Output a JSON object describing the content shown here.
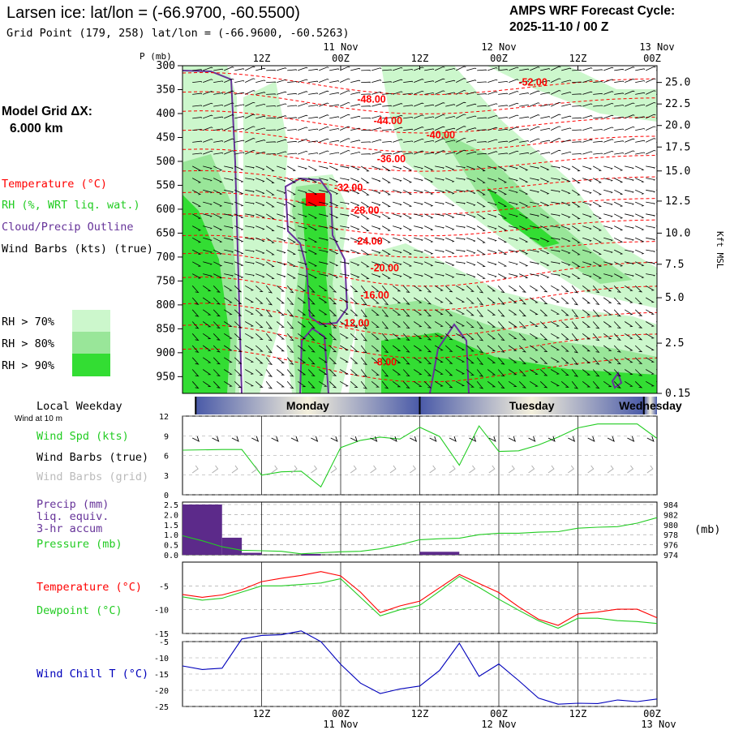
{
  "header": {
    "title": "Larsen ice:  lat/lon = (-66.9700, -60.5500)",
    "subtitle": "Grid Point (179, 258) lat/lon = (-66.9600, -60.5263)",
    "cycle_title": "AMPS WRF Forecast Cycle:",
    "cycle_value": "2025-11-10 / 00  Z"
  },
  "sidebar": {
    "grid_label": "Model Grid ΔX:",
    "grid_value": "6.000 km",
    "legend_temperature": "Temperature (°C)",
    "legend_rh": "RH (%, WRT liq. wat.)",
    "legend_cloud": "Cloud/Precip Outline",
    "legend_wind": "Wind Barbs (kts) (true)",
    "rh70": "RH > 70%",
    "rh80": "RH > 80%",
    "rh90": "RH > 90%",
    "local_weekday": "Local Weekday",
    "wind_at": "Wind at 10 m",
    "wind_spd": "Wind Spd (kts)",
    "wind_barbs_true": "Wind Barbs (true)",
    "wind_barbs_grid": "Wind Barbs (grid)",
    "precip1": "Precip (mm)",
    "precip2": "liq. equiv.",
    "precip3": "3-hr accum",
    "pressure": "Pressure (mb)",
    "pressure_unit": "(mb)",
    "temperature": "Temperature (°C)",
    "dewpoint": "Dewpoint (°C)",
    "windchill": "Wind Chill T (°C)"
  },
  "colors": {
    "rh70": "#ccf7cc",
    "rh80": "#99e699",
    "rh90": "#33dd33",
    "temperature": "#ff0000",
    "dewpoint": "#22cc22",
    "cloud": "#663399",
    "windchill": "#0000bb",
    "precip": "#5c2a8a",
    "pressure": "#22cc22"
  },
  "chart_data": [
    {
      "type": "heatmap",
      "name": "cross-section",
      "top_axis_labels": [
        {
          "x_hour": 12,
          "line1": "",
          "line2": "12Z"
        },
        {
          "x_hour": 24,
          "line1": "11 Nov",
          "line2": "00Z"
        },
        {
          "x_hour": 36,
          "line1": "",
          "line2": "12Z"
        },
        {
          "x_hour": 48,
          "line1": "12 Nov",
          "line2": "00Z"
        },
        {
          "x_hour": 60,
          "line1": "",
          "line2": "12Z"
        },
        {
          "x_hour": 72,
          "line1": "13 Nov",
          "line2": "00Z"
        }
      ],
      "xlim_hours": [
        0,
        72
      ],
      "ylabel": "P (mb)",
      "pressure_ticks": [
        300,
        350,
        400,
        450,
        500,
        550,
        600,
        650,
        700,
        750,
        800,
        850,
        900,
        950
      ],
      "kft_label": "Kft MSL",
      "kft_ticks": [
        {
          "label": "25.0",
          "p": 335
        },
        {
          "label": "22.5",
          "p": 380
        },
        {
          "label": "20.0",
          "p": 425
        },
        {
          "label": "17.5",
          "p": 470
        },
        {
          "label": "15.0",
          "p": 520
        },
        {
          "label": "12.5",
          "p": 583
        },
        {
          "label": "10.0",
          "p": 650
        },
        {
          "label": "7.5",
          "p": 715
        },
        {
          "label": "5.0",
          "p": 785
        },
        {
          "label": "2.5",
          "p": 880
        },
        {
          "label": "0.15",
          "p": 985
        }
      ],
      "temperature_labels": [
        {
          "label": "-48.00",
          "x_hour": 26.5,
          "p": 370
        },
        {
          "label": "-52.00",
          "x_hour": 51,
          "p": 335
        },
        {
          "label": "-44.00",
          "x_hour": 29,
          "p": 415
        },
        {
          "label": "-40.00",
          "x_hour": 37,
          "p": 445
        },
        {
          "label": "-36.00",
          "x_hour": 29.5,
          "p": 495
        },
        {
          "label": "-32.00",
          "x_hour": 23,
          "p": 555
        },
        {
          "label": "-28.00",
          "x_hour": 25.5,
          "p": 603
        },
        {
          "label": "-24.00",
          "x_hour": 26,
          "p": 667
        },
        {
          "label": "-20.00",
          "x_hour": 28.5,
          "p": 723
        },
        {
          "label": "-16.00",
          "x_hour": 27,
          "p": 780
        },
        {
          "label": "-12.00",
          "x_hour": 24,
          "p": 838
        },
        {
          "label": "-8.00",
          "x_hour": 29,
          "p": 920
        }
      ],
      "legend": [
        "RH > 70%",
        "RH > 80%",
        "RH > 90%"
      ]
    },
    {
      "type": "bar",
      "name": "weekday-strip",
      "categories": [
        "Monday",
        "Tuesday",
        "Wednesday"
      ]
    },
    {
      "type": "line",
      "name": "wind",
      "ylim": [
        0,
        12
      ],
      "yticks": [
        0,
        3,
        6,
        9,
        12
      ],
      "x_hours": [
        0,
        6,
        9,
        12,
        15,
        18,
        21,
        24,
        27,
        30,
        33,
        36,
        39,
        42,
        45,
        48,
        51,
        54,
        57,
        60,
        63,
        66,
        69,
        72
      ],
      "series": [
        {
          "name": "Wind Spd (kts)",
          "values": [
            6.8,
            6.9,
            6.9,
            3.0,
            3.5,
            3.6,
            1.2,
            7.2,
            8.3,
            8.8,
            8.5,
            10.3,
            8.9,
            4.5,
            10.5,
            6.6,
            6.7,
            7.6,
            8.8,
            10.2,
            10.8,
            10.8,
            10.8,
            8.6
          ]
        }
      ]
    },
    {
      "type": "bar",
      "name": "precip-pressure",
      "precip_ylim": [
        0,
        2.5
      ],
      "precip_yticks": [
        "0.0",
        "0.5",
        "1.0",
        "1.5",
        "2.0",
        "2.5"
      ],
      "pressure_yticks": [
        974,
        976,
        978,
        980,
        982,
        984
      ],
      "pressure_ylim": [
        974,
        984.5
      ],
      "precip_bars": [
        {
          "x0": 0,
          "x1": 6,
          "value": 2.5
        },
        {
          "x0": 6,
          "x1": 9,
          "value": 0.85
        },
        {
          "x0": 9,
          "x1": 12,
          "value": 0.1
        },
        {
          "x0": 18,
          "x1": 21,
          "value": 0.04
        },
        {
          "x0": 36,
          "x1": 42,
          "value": 0.15
        }
      ],
      "pressure_x_hours": [
        0,
        3,
        6,
        9,
        12,
        15,
        18,
        21,
        24,
        27,
        30,
        33,
        36,
        39,
        42,
        45,
        48,
        51,
        54,
        57,
        60,
        63,
        66,
        69,
        72
      ],
      "pressure_values": [
        977.8,
        976.8,
        975.6,
        974.9,
        974.8,
        974.7,
        974.2,
        974.4,
        974.6,
        974.7,
        975.2,
        976.0,
        977.0,
        977.2,
        977.3,
        978.0,
        978.3,
        978.3,
        978.5,
        978.6,
        979.3,
        979.5,
        979.6,
        980.3,
        981.4
      ]
    },
    {
      "type": "line",
      "name": "temperature-dewpoint",
      "ylim": [
        -15,
        0
      ],
      "yticks": [
        -5,
        -10,
        -15
      ],
      "x_hours": [
        0,
        3,
        6,
        9,
        12,
        15,
        18,
        21,
        24,
        27,
        30,
        33,
        36,
        39,
        42,
        45,
        48,
        51,
        54,
        57,
        60,
        63,
        66,
        69,
        72
      ],
      "series": [
        {
          "name": "Temperature (°C)",
          "values": [
            -6.8,
            -7.4,
            -6.9,
            -5.8,
            -4.1,
            -3.4,
            -2.8,
            -2.0,
            -2.9,
            -6.3,
            -10.6,
            -9.2,
            -8.2,
            -5.4,
            -2.6,
            -4.5,
            -6.4,
            -9.4,
            -12.0,
            -13.3,
            -10.9,
            -10.5,
            -9.9,
            -9.9,
            -11.7
          ]
        },
        {
          "name": "Dewpoint (°C)",
          "values": [
            -7.3,
            -8.0,
            -7.6,
            -6.3,
            -5.0,
            -5.0,
            -4.7,
            -4.4,
            -3.5,
            -7.4,
            -11.3,
            -10.0,
            -9.1,
            -6.1,
            -3.0,
            -5.3,
            -7.8,
            -10.1,
            -12.3,
            -13.9,
            -11.8,
            -11.8,
            -12.3,
            -12.5,
            -12.9
          ]
        }
      ]
    },
    {
      "type": "line",
      "name": "wind-chill",
      "ylim": [
        -25,
        -5
      ],
      "yticks": [
        -5,
        -10,
        -15,
        -20,
        -25
      ],
      "x_hours": [
        0,
        3,
        6,
        9,
        12,
        15,
        18,
        21,
        24,
        27,
        30,
        33,
        36,
        39,
        42,
        45,
        48,
        51,
        54,
        57,
        60,
        63,
        66,
        69,
        72
      ],
      "series": [
        {
          "name": "Wind Chill T (°C)",
          "values": [
            -12.5,
            -13.6,
            -13.2,
            -4.2,
            -3.1,
            -2.9,
            -1.7,
            -5.0,
            -12.0,
            -17.8,
            -21.0,
            -19.6,
            -18.7,
            -13.9,
            -5.5,
            -15.7,
            -11.9,
            -17.0,
            -22.4,
            -24.3,
            -24.0,
            -24.1,
            -23.0,
            -23.5,
            -22.7
          ]
        }
      ],
      "bottom_axis_labels": [
        {
          "x_hour": 12,
          "line1": "12Z",
          "line2": ""
        },
        {
          "x_hour": 24,
          "line1": "00Z",
          "line2": "11 Nov"
        },
        {
          "x_hour": 36,
          "line1": "12Z",
          "line2": ""
        },
        {
          "x_hour": 48,
          "line1": "00Z",
          "line2": "12 Nov"
        },
        {
          "x_hour": 60,
          "line1": "12Z",
          "line2": ""
        },
        {
          "x_hour": 72,
          "line1": "00Z",
          "line2": "13 Nov"
        }
      ]
    }
  ]
}
